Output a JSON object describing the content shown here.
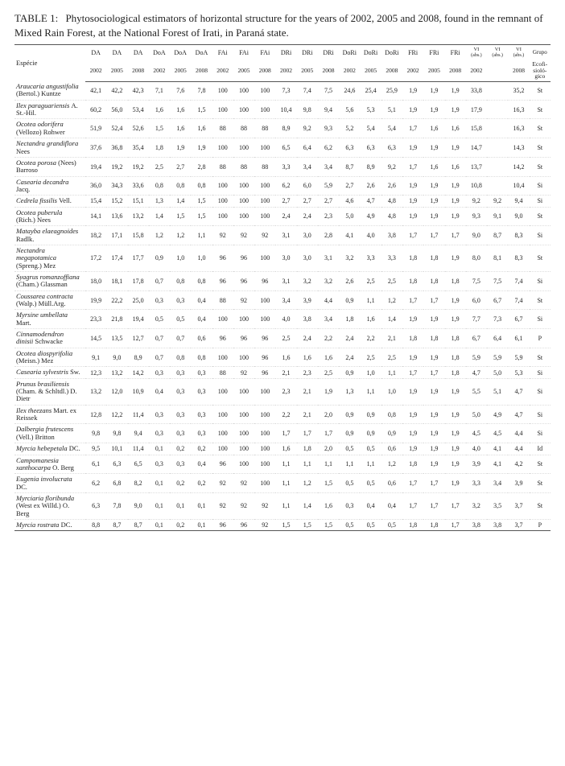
{
  "caption_label": "TABLE 1:",
  "caption_text": "Phytosociological estimators of horizontal structure for the years of 2002, 2005 and 2008, found in the remnant of Mixed Rain Forest, at the National Forest of Irati, in Paraná state.",
  "header_species": "Espécie",
  "col_groups": [
    "DA",
    "DA",
    "DA",
    "DoA",
    "DoA",
    "DoA",
    "FAi",
    "FAi",
    "FAi",
    "DRi",
    "DRi",
    "DRi",
    "DoRi",
    "DoRi",
    "DoRi",
    "FRi",
    "FRi",
    "FRi"
  ],
  "vi_label": "VI",
  "vi_sub": "(abs.)",
  "grupo_label": "Grupo",
  "years": [
    "2002",
    "2005",
    "2008",
    "2002",
    "2005",
    "2008",
    "2002",
    "2005",
    "2008",
    "2002",
    "2005",
    "2008",
    "2002",
    "2005",
    "2008",
    "2002",
    "2005",
    "2008",
    "2002",
    "",
    "2008"
  ],
  "grupo_sub": "Ecofi-\nsioló-\ngico",
  "rows": [
    {
      "sp": "Araucaria angustifolia",
      "auth": "(Bertol.) Kuntze",
      "v": [
        "42,1",
        "42,2",
        "42,3",
        "7,1",
        "7,6",
        "7,8",
        "100",
        "100",
        "100",
        "7,3",
        "7,4",
        "7,5",
        "24,6",
        "25,4",
        "25,9",
        "1,9",
        "1,9",
        "1,9",
        "33,8",
        "",
        "35,2",
        "St"
      ]
    },
    {
      "sp": "Ilex paraguariensis",
      "auth": "A. St.-Hil.",
      "v": [
        "60,2",
        "56,0",
        "53,4",
        "1,6",
        "1,6",
        "1,5",
        "100",
        "100",
        "100",
        "10,4",
        "9,8",
        "9,4",
        "5,6",
        "5,3",
        "5,1",
        "1,9",
        "1,9",
        "1,9",
        "17,9",
        "",
        "16,3",
        "St"
      ]
    },
    {
      "sp": "Ocotea odorifera",
      "auth": "(Vellozo) Rohwer",
      "v": [
        "51,9",
        "52,4",
        "52,6",
        "1,5",
        "1,6",
        "1,6",
        "88",
        "88",
        "88",
        "8,9",
        "9,2",
        "9,3",
        "5,2",
        "5,4",
        "5,4",
        "1,7",
        "1,6",
        "1,6",
        "15,8",
        "",
        "16,3",
        "St"
      ]
    },
    {
      "sp": "Nectandra grandiflora",
      "auth": "Nees",
      "v": [
        "37,6",
        "36,8",
        "35,4",
        "1,8",
        "1,9",
        "1,9",
        "100",
        "100",
        "100",
        "6,5",
        "6,4",
        "6,2",
        "6,3",
        "6,3",
        "6,3",
        "1,9",
        "1,9",
        "1,9",
        "14,7",
        "",
        "14,3",
        "St"
      ]
    },
    {
      "sp": "Ocotea porosa",
      "auth": "(Nees) Barroso",
      "v": [
        "19,4",
        "19,2",
        "19,2",
        "2,5",
        "2,7",
        "2,8",
        "88",
        "88",
        "88",
        "3,3",
        "3,4",
        "3,4",
        "8,7",
        "8,9",
        "9,2",
        "1,7",
        "1,6",
        "1,6",
        "13,7",
        "",
        "14,2",
        "St"
      ]
    },
    {
      "sp": "Casearia decandra",
      "auth": "Jacq.",
      "v": [
        "36,0",
        "34,3",
        "33,6",
        "0,8",
        "0,8",
        "0,8",
        "100",
        "100",
        "100",
        "6,2",
        "6,0",
        "5,9",
        "2,7",
        "2,6",
        "2,6",
        "1,9",
        "1,9",
        "1,9",
        "10,8",
        "",
        "10,4",
        "Si"
      ]
    },
    {
      "sp": "Cedrela fissilis",
      "auth": "Vell.",
      "v": [
        "15,4",
        "15,2",
        "15,1",
        "1,3",
        "1,4",
        "1,5",
        "100",
        "100",
        "100",
        "2,7",
        "2,7",
        "2,7",
        "4,6",
        "4,7",
        "4,8",
        "1,9",
        "1,9",
        "1,9",
        "9,2",
        "9,2",
        "9,4",
        "Si"
      ]
    },
    {
      "sp": "Ocotea puberula",
      "auth": "(Rich.) Nees",
      "v": [
        "14,1",
        "13,6",
        "13,2",
        "1,4",
        "1,5",
        "1,5",
        "100",
        "100",
        "100",
        "2,4",
        "2,4",
        "2,3",
        "5,0",
        "4,9",
        "4,8",
        "1,9",
        "1,9",
        "1,9",
        "9,3",
        "9,1",
        "9,0",
        "St"
      ]
    },
    {
      "sp": "Matayba elaeagnoides",
      "auth": "Radlk.",
      "v": [
        "18,2",
        "17,1",
        "15,8",
        "1,2",
        "1,2",
        "1,1",
        "92",
        "92",
        "92",
        "3,1",
        "3,0",
        "2,8",
        "4,1",
        "4,0",
        "3,8",
        "1,7",
        "1,7",
        "1,7",
        "9,0",
        "8,7",
        "8,3",
        "Si"
      ]
    },
    {
      "sp": "Nectandra megapotamica",
      "auth": "(Spreng.) Mez",
      "v": [
        "17,2",
        "17,4",
        "17,7",
        "0,9",
        "1,0",
        "1,0",
        "96",
        "96",
        "100",
        "3,0",
        "3,0",
        "3,1",
        "3,2",
        "3,3",
        "3,3",
        "1,8",
        "1,8",
        "1,9",
        "8,0",
        "8,1",
        "8,3",
        "St"
      ]
    },
    {
      "sp": "Syagrus romanzoffiana",
      "auth": "(Cham.) Glassman",
      "v": [
        "18,0",
        "18,1",
        "17,8",
        "0,7",
        "0,8",
        "0,8",
        "96",
        "96",
        "96",
        "3,1",
        "3,2",
        "3,2",
        "2,6",
        "2,5",
        "2,5",
        "1,8",
        "1,8",
        "1,8",
        "7,5",
        "7,5",
        "7,4",
        "Si"
      ]
    },
    {
      "sp": "Coussarea contracta",
      "auth": "(Walp.) Müll.Arg.",
      "v": [
        "19,9",
        "22,2",
        "25,0",
        "0,3",
        "0,3",
        "0,4",
        "88",
        "92",
        "100",
        "3,4",
        "3,9",
        "4,4",
        "0,9",
        "1,1",
        "1,2",
        "1,7",
        "1,7",
        "1,9",
        "6,0",
        "6,7",
        "7,4",
        "St"
      ]
    },
    {
      "sp": "Myrsine umbellata",
      "auth": "Mart.",
      "v": [
        "23,3",
        "21,8",
        "19,4",
        "0,5",
        "0,5",
        "0,4",
        "100",
        "100",
        "100",
        "4,0",
        "3,8",
        "3,4",
        "1,8",
        "1,6",
        "1,4",
        "1,9",
        "1,9",
        "1,9",
        "7,7",
        "7,3",
        "6,7",
        "Si"
      ]
    },
    {
      "sp": "Cinnamodendron dinisii",
      "auth": "Schwacke",
      "v": [
        "14,5",
        "13,5",
        "12,7",
        "0,7",
        "0,7",
        "0,6",
        "96",
        "96",
        "96",
        "2,5",
        "2,4",
        "2,2",
        "2,4",
        "2,2",
        "2,1",
        "1,8",
        "1,8",
        "1,8",
        "6,7",
        "6,4",
        "6,1",
        "P"
      ]
    },
    {
      "sp": "Ocotea diospyrifolia",
      "auth": "(Meisn.) Mez",
      "v": [
        "9,1",
        "9,0",
        "8,9",
        "0,7",
        "0,8",
        "0,8",
        "100",
        "100",
        "96",
        "1,6",
        "1,6",
        "1,6",
        "2,4",
        "2,5",
        "2,5",
        "1,9",
        "1,9",
        "1,8",
        "5,9",
        "5,9",
        "5,9",
        "St"
      ]
    },
    {
      "sp": "Casearia sylvestris",
      "auth": "Sw.",
      "v": [
        "12,3",
        "13,2",
        "14,2",
        "0,3",
        "0,3",
        "0,3",
        "88",
        "92",
        "96",
        "2,1",
        "2,3",
        "2,5",
        "0,9",
        "1,0",
        "1,1",
        "1,7",
        "1,7",
        "1,8",
        "4,7",
        "5,0",
        "5,3",
        "Si"
      ]
    },
    {
      "sp": "Prunus brasiliensis",
      "auth": "(Cham. & Schltdl.) D. Dietr",
      "v": [
        "13,2",
        "12,0",
        "10,9",
        "0,4",
        "0,3",
        "0,3",
        "100",
        "100",
        "100",
        "2,3",
        "2,1",
        "1,9",
        "1,3",
        "1,1",
        "1,0",
        "1,9",
        "1,9",
        "1,9",
        "5,5",
        "5,1",
        "4,7",
        "Si"
      ]
    },
    {
      "sp": "Ilex theezans",
      "auth": "Mart. ex Reissek",
      "v": [
        "12,8",
        "12,2",
        "11,4",
        "0,3",
        "0,3",
        "0,3",
        "100",
        "100",
        "100",
        "2,2",
        "2,1",
        "2,0",
        "0,9",
        "0,9",
        "0,8",
        "1,9",
        "1,9",
        "1,9",
        "5,0",
        "4,9",
        "4,7",
        "Si"
      ]
    },
    {
      "sp": "Dalbergia frutescens",
      "auth": "(Vell.) Britton",
      "v": [
        "9,8",
        "9,8",
        "9,4",
        "0,3",
        "0,3",
        "0,3",
        "100",
        "100",
        "100",
        "1,7",
        "1,7",
        "1,7",
        "0,9",
        "0,9",
        "0,9",
        "1,9",
        "1,9",
        "1,9",
        "4,5",
        "4,5",
        "4,4",
        "Si"
      ]
    },
    {
      "sp": "Myrcia hebepetala",
      "auth": "DC.",
      "v": [
        "9,5",
        "10,1",
        "11,4",
        "0,1",
        "0,2",
        "0,2",
        "100",
        "100",
        "100",
        "1,6",
        "1,8",
        "2,0",
        "0,5",
        "0,5",
        "0,6",
        "1,9",
        "1,9",
        "1,9",
        "4,0",
        "4,1",
        "4,4",
        "Id"
      ]
    },
    {
      "sp": "Campomanesia xanthocarpa",
      "auth": "O. Berg",
      "v": [
        "6,1",
        "6,3",
        "6,5",
        "0,3",
        "0,3",
        "0,4",
        "96",
        "100",
        "100",
        "1,1",
        "1,1",
        "1,1",
        "1,1",
        "1,1",
        "1,2",
        "1,8",
        "1,9",
        "1,9",
        "3,9",
        "4,1",
        "4,2",
        "St"
      ]
    },
    {
      "sp": "Eugenia involucrata",
      "auth": "DC.",
      "v": [
        "6,2",
        "6,8",
        "8,2",
        "0,1",
        "0,2",
        "0,2",
        "92",
        "92",
        "100",
        "1,1",
        "1,2",
        "1,5",
        "0,5",
        "0,5",
        "0,6",
        "1,7",
        "1,7",
        "1,9",
        "3,3",
        "3,4",
        "3,9",
        "St"
      ]
    },
    {
      "sp": "Myrciaria floribunda",
      "auth": "(West ex Willd.) O. Berg",
      "v": [
        "6,3",
        "7,8",
        "9,0",
        "0,1",
        "0,1",
        "0,1",
        "92",
        "92",
        "92",
        "1,1",
        "1,4",
        "1,6",
        "0,3",
        "0,4",
        "0,4",
        "1,7",
        "1,7",
        "1,7",
        "3,2",
        "3,5",
        "3,7",
        "St"
      ]
    },
    {
      "sp": "Myrcia rostrata",
      "auth": "DC.",
      "v": [
        "8,8",
        "8,7",
        "8,7",
        "0,1",
        "0,2",
        "0,1",
        "96",
        "96",
        "92",
        "1,5",
        "1,5",
        "1,5",
        "0,5",
        "0,5",
        "0,5",
        "1,8",
        "1,8",
        "1,7",
        "3,8",
        "3,8",
        "3,7",
        "P"
      ]
    }
  ]
}
